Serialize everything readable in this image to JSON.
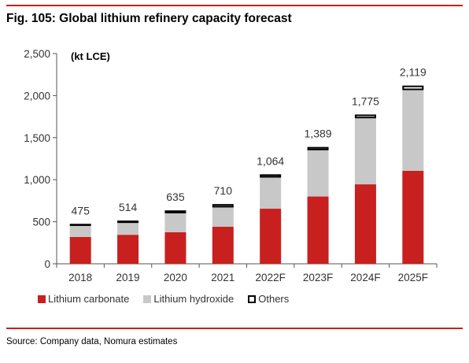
{
  "figure": {
    "title": "Fig. 105: Global lithium refinery capacity forecast",
    "source": "Source: Company data, Nomura estimates"
  },
  "colors": {
    "accent_rule": "#c8201e",
    "carbonate": "#c8201e",
    "hydroxide": "#c8c8c8",
    "others_fill": "#ffffff",
    "others_stroke": "#000000"
  },
  "chart_data": {
    "type": "bar",
    "stacked": true,
    "unit_label": "(kt LCE)",
    "categories": [
      "2018",
      "2019",
      "2020",
      "2021",
      "2022F",
      "2023F",
      "2024F",
      "2025F"
    ],
    "series": [
      {
        "name": "Lithium carbonate",
        "values": [
          320,
          345,
          375,
          440,
          655,
          800,
          945,
          1105
        ]
      },
      {
        "name": "Lithium hydroxide",
        "values": [
          130,
          140,
          225,
          230,
          370,
          550,
          785,
          960
        ]
      },
      {
        "name": "Others",
        "values": [
          25,
          29,
          35,
          40,
          39,
          39,
          45,
          54
        ]
      }
    ],
    "totals": [
      475,
      514,
      635,
      710,
      1064,
      1389,
      1775,
      2119
    ],
    "total_labels": [
      "475",
      "514",
      "635",
      "710",
      "1,064",
      "1,389",
      "1,775",
      "2,119"
    ],
    "ylim": [
      0,
      2500
    ],
    "yticks": [
      0,
      500,
      1000,
      1500,
      2000,
      2500
    ],
    "ytick_labels": [
      "0",
      "500",
      "1,000",
      "1,500",
      "2,000",
      "2,500"
    ],
    "grid": false,
    "legend_position": "bottom-left"
  }
}
